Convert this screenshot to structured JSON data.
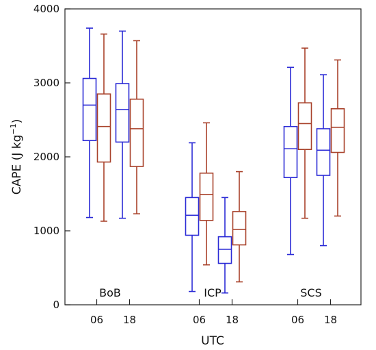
{
  "chart_data": {
    "type": "boxplot",
    "xlabel": "UTC",
    "ylabel_main": "CAPE (J kg",
    "ylabel_sup": "−1",
    "ylabel_close": ")",
    "ylim": [
      0,
      4000
    ],
    "yticks": [
      0,
      1000,
      2000,
      3000,
      4000
    ],
    "grid": false,
    "legend": "none",
    "colors": {
      "06": "#2b2bd6",
      "18": "#a8412a"
    },
    "groups": [
      {
        "region": "BoB",
        "boxes": [
          {
            "time": "06",
            "model": "a",
            "whisker_low": 1180,
            "q1": 2220,
            "median": 2700,
            "q3": 3060,
            "whisker_high": 3740
          },
          {
            "time": "06",
            "model": "b",
            "whisker_low": 1130,
            "q1": 1930,
            "median": 2410,
            "q3": 2850,
            "whisker_high": 3660
          },
          {
            "time": "18",
            "model": "a",
            "whisker_low": 1170,
            "q1": 2200,
            "median": 2640,
            "q3": 2990,
            "whisker_high": 3700
          },
          {
            "time": "18",
            "model": "b",
            "whisker_low": 1230,
            "q1": 1870,
            "median": 2380,
            "q3": 2780,
            "whisker_high": 3570
          }
        ]
      },
      {
        "region": "ICP",
        "boxes": [
          {
            "time": "06",
            "model": "a",
            "whisker_low": 180,
            "q1": 940,
            "median": 1210,
            "q3": 1450,
            "whisker_high": 2190
          },
          {
            "time": "06",
            "model": "b",
            "whisker_low": 540,
            "q1": 1140,
            "median": 1490,
            "q3": 1780,
            "whisker_high": 2460
          },
          {
            "time": "18",
            "model": "a",
            "whisker_low": 160,
            "q1": 560,
            "median": 750,
            "q3": 920,
            "whisker_high": 1450
          },
          {
            "time": "18",
            "model": "b",
            "whisker_low": 310,
            "q1": 810,
            "median": 1020,
            "q3": 1260,
            "whisker_high": 1800
          }
        ]
      },
      {
        "region": "SCS",
        "boxes": [
          {
            "time": "06",
            "model": "a",
            "whisker_low": 680,
            "q1": 1720,
            "median": 2110,
            "q3": 2410,
            "whisker_high": 3210
          },
          {
            "time": "06",
            "model": "b",
            "whisker_low": 1170,
            "q1": 2100,
            "median": 2450,
            "q3": 2730,
            "whisker_high": 3470
          },
          {
            "time": "18",
            "model": "a",
            "whisker_low": 800,
            "q1": 1750,
            "median": 2090,
            "q3": 2380,
            "whisker_high": 3110
          },
          {
            "time": "18",
            "model": "b",
            "whisker_low": 1200,
            "q1": 2060,
            "median": 2400,
            "q3": 2650,
            "whisker_high": 3310
          }
        ]
      }
    ]
  }
}
